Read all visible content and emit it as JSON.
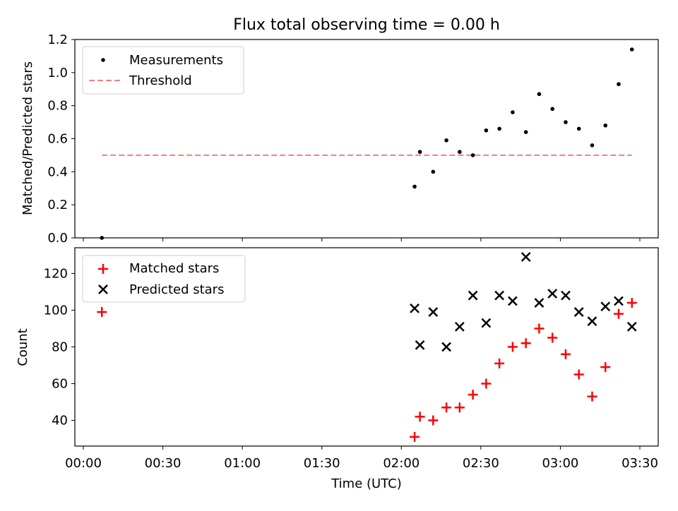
{
  "title": "Flux total observing time = 0.00 h",
  "chart_data": [
    {
      "type": "scatter",
      "panel": "top",
      "title": "Flux total observing time = 0.00 h",
      "xlabel": "",
      "ylabel": "Matched/Predicted stars",
      "xlim": [
        "00:00",
        "03:30"
      ],
      "ylim": [
        0,
        1.2
      ],
      "yticks": [
        "0.0",
        "0.2",
        "0.4",
        "0.6",
        "0.8",
        "1.0",
        "1.2"
      ],
      "legend_position": "top-left",
      "series": [
        {
          "name": "Measurements",
          "marker": "dot",
          "color": "#000000",
          "points": [
            {
              "x": "00:07",
              "y": 0.0
            },
            {
              "x": "02:05",
              "y": 0.31
            },
            {
              "x": "02:07",
              "y": 0.52
            },
            {
              "x": "02:12",
              "y": 0.4
            },
            {
              "x": "02:17",
              "y": 0.59
            },
            {
              "x": "02:22",
              "y": 0.52
            },
            {
              "x": "02:27",
              "y": 0.5
            },
            {
              "x": "02:32",
              "y": 0.65
            },
            {
              "x": "02:37",
              "y": 0.66
            },
            {
              "x": "02:42",
              "y": 0.76
            },
            {
              "x": "02:47",
              "y": 0.64
            },
            {
              "x": "02:52",
              "y": 0.87
            },
            {
              "x": "02:57",
              "y": 0.78
            },
            {
              "x": "03:02",
              "y": 0.7
            },
            {
              "x": "03:07",
              "y": 0.66
            },
            {
              "x": "03:12",
              "y": 0.56
            },
            {
              "x": "03:17",
              "y": 0.68
            },
            {
              "x": "03:22",
              "y": 0.93
            },
            {
              "x": "03:27",
              "y": 1.14
            }
          ]
        },
        {
          "name": "Threshold",
          "marker": "dashed-line",
          "color": "#f08080",
          "points": [
            {
              "x": "00:07",
              "y": 0.5
            },
            {
              "x": "03:27",
              "y": 0.5
            }
          ]
        }
      ]
    },
    {
      "type": "scatter",
      "panel": "bottom",
      "xlabel": "Time (UTC)",
      "ylabel": "Count",
      "xlim": [
        "00:00",
        "03:30"
      ],
      "ylim": [
        26,
        134
      ],
      "xticks": [
        "00:00",
        "00:30",
        "01:00",
        "01:30",
        "02:00",
        "02:30",
        "03:00",
        "03:30"
      ],
      "yticks": [
        "40",
        "60",
        "80",
        "100",
        "120"
      ],
      "legend_position": "top-left",
      "series": [
        {
          "name": "Matched stars",
          "marker": "plus",
          "color": "#ff0000",
          "points": [
            {
              "x": "00:07",
              "y": 99
            },
            {
              "x": "02:05",
              "y": 31
            },
            {
              "x": "02:07",
              "y": 42
            },
            {
              "x": "02:12",
              "y": 40
            },
            {
              "x": "02:17",
              "y": 47
            },
            {
              "x": "02:22",
              "y": 47
            },
            {
              "x": "02:27",
              "y": 54
            },
            {
              "x": "02:32",
              "y": 60
            },
            {
              "x": "02:37",
              "y": 71
            },
            {
              "x": "02:42",
              "y": 80
            },
            {
              "x": "02:47",
              "y": 82
            },
            {
              "x": "02:52",
              "y": 90
            },
            {
              "x": "02:57",
              "y": 85
            },
            {
              "x": "03:02",
              "y": 76
            },
            {
              "x": "03:07",
              "y": 65
            },
            {
              "x": "03:12",
              "y": 53
            },
            {
              "x": "03:17",
              "y": 69
            },
            {
              "x": "03:22",
              "y": 98
            },
            {
              "x": "03:27",
              "y": 104
            }
          ]
        },
        {
          "name": "Predicted stars",
          "marker": "x",
          "color": "#000000",
          "points": [
            {
              "x": "02:05",
              "y": 101
            },
            {
              "x": "02:07",
              "y": 81
            },
            {
              "x": "02:12",
              "y": 99
            },
            {
              "x": "02:17",
              "y": 80
            },
            {
              "x": "02:22",
              "y": 91
            },
            {
              "x": "02:27",
              "y": 108
            },
            {
              "x": "02:32",
              "y": 93
            },
            {
              "x": "02:37",
              "y": 108
            },
            {
              "x": "02:42",
              "y": 105
            },
            {
              "x": "02:47",
              "y": 129
            },
            {
              "x": "02:52",
              "y": 104
            },
            {
              "x": "02:57",
              "y": 109
            },
            {
              "x": "03:02",
              "y": 108
            },
            {
              "x": "03:07",
              "y": 99
            },
            {
              "x": "03:12",
              "y": 94
            },
            {
              "x": "03:17",
              "y": 102
            },
            {
              "x": "03:22",
              "y": 105
            },
            {
              "x": "03:27",
              "y": 91
            }
          ]
        }
      ]
    }
  ]
}
